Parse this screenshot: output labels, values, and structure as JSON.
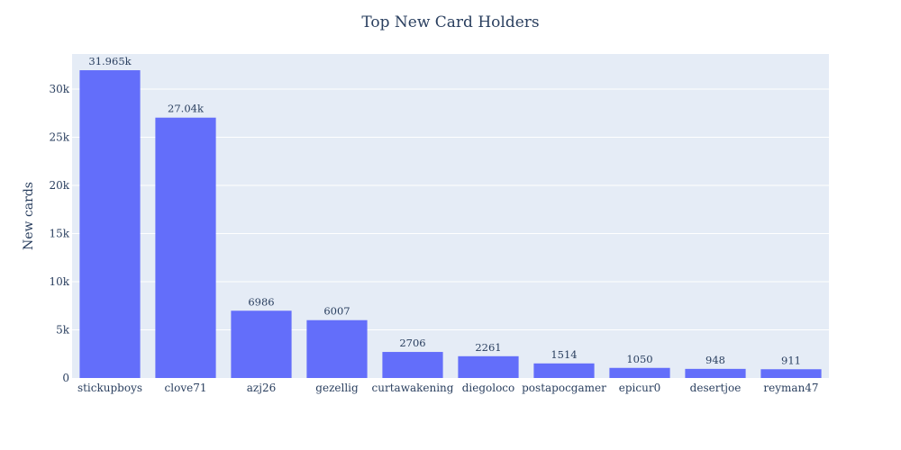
{
  "chart_data": {
    "type": "bar",
    "title": "Top New Card Holders",
    "xlabel": "",
    "ylabel": "New cards",
    "categories": [
      "stickupboys",
      "clove71",
      "azj26",
      "gezellig",
      "curtawakening",
      "diegoloco",
      "postapocgamer",
      "epicur0",
      "desertjoe",
      "reyman47"
    ],
    "values": [
      31965,
      27040,
      6986,
      6007,
      2706,
      2261,
      1514,
      1050,
      948,
      911
    ],
    "data_labels": [
      "31.965k",
      "27.04k",
      "6986",
      "6007",
      "2706",
      "2261",
      "1514",
      "1050",
      "948",
      "911"
    ],
    "ylim": [
      0,
      33650
    ],
    "y_ticks": [
      0,
      5000,
      10000,
      15000,
      20000,
      25000,
      30000
    ],
    "y_tick_labels": [
      "0",
      "5k",
      "10k",
      "15k",
      "20k",
      "25k",
      "30k"
    ],
    "grid": true,
    "legend": "none",
    "colors": {
      "bar": "#636efa",
      "plot_background": "#e5ecf6",
      "gridline": "#ffffff",
      "text": "#2a3f5f"
    }
  }
}
